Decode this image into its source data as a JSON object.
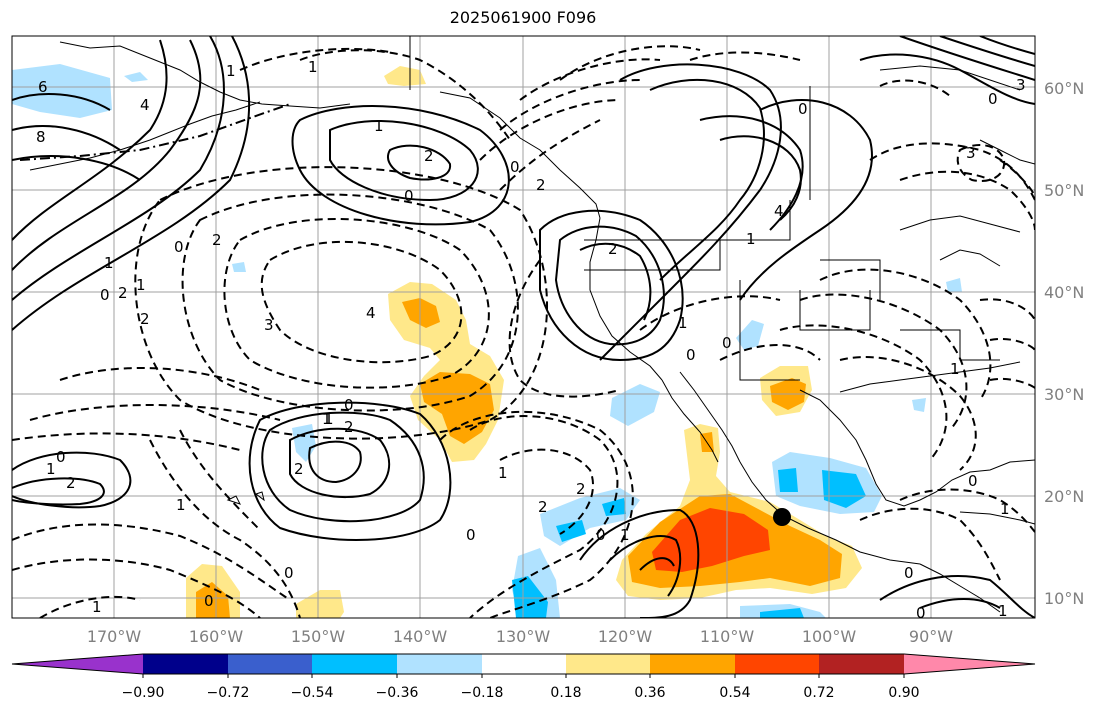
{
  "title": "2025061900 F096",
  "latitude_labels": [
    "60°N",
    "50°N",
    "40°N",
    "30°N",
    "20°N",
    "10°N"
  ],
  "longitude_labels": [
    "170°W",
    "160°W",
    "150°W",
    "140°W",
    "130°W",
    "120°W",
    "110°W",
    "100°W",
    "90°W"
  ],
  "colorbar": {
    "tick_labels": [
      "−0.90",
      "−0.72",
      "−0.54",
      "−0.36",
      "−0.18",
      "0.18",
      "0.36",
      "0.54",
      "0.72",
      "0.90"
    ],
    "colors": [
      "#9932CC",
      "#00008B",
      "#3A5FCD",
      "#00BFFF",
      "#B0E2FF",
      "#FFFFFF",
      "#FFE88A",
      "#FFA500",
      "#FF4500",
      "#B22222",
      "#FF88AA"
    ]
  },
  "contour_labels": [
    "6",
    "4",
    "8",
    "1",
    "2",
    "0",
    "1",
    "0",
    "2",
    "1",
    "2",
    "0",
    "1",
    "2",
    "3",
    "4",
    "1",
    "0",
    "1",
    "2",
    "1",
    "2",
    "0",
    "1",
    "2",
    "0",
    "1",
    "0",
    "1",
    "2",
    "2",
    "1",
    "0",
    "0",
    "3",
    "4",
    "2",
    "1",
    "0",
    "0",
    "0",
    "1",
    "2",
    "0",
    "3",
    "0",
    "1",
    "1",
    "0",
    "1",
    "0",
    "1",
    "0"
  ],
  "map_colors": {
    "coast": "#000000",
    "contour": "#000000",
    "grid": "#a0a0a0"
  }
}
